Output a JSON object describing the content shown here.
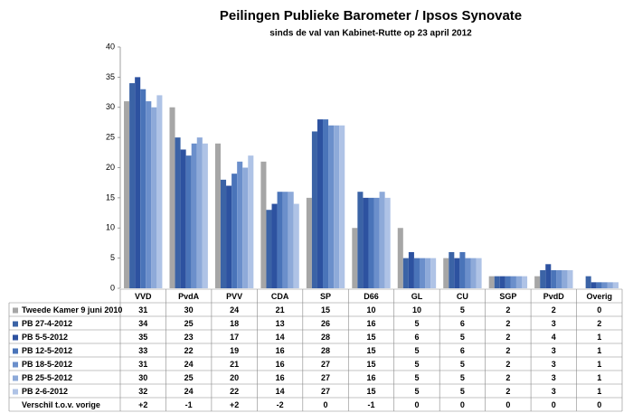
{
  "chart_data": {
    "type": "bar",
    "title": "Peilingen Publieke Barometer / Ipsos Synovate",
    "subtitle": "sinds de val van Kabinet-Rutte op 23 april 2012",
    "categories": [
      "VVD",
      "PvdA",
      "PVV",
      "CDA",
      "SP",
      "D66",
      "GL",
      "CU",
      "SGP",
      "PvdD",
      "Overig"
    ],
    "series": [
      {
        "name": "Tweede Kamer 9 juni 2010",
        "color": "#a6a6a6",
        "values": [
          31,
          30,
          24,
          21,
          15,
          10,
          10,
          5,
          2,
          2,
          0
        ]
      },
      {
        "name": "PB 27-4-2012",
        "color": "#3b63a6",
        "values": [
          34,
          25,
          18,
          13,
          26,
          16,
          5,
          6,
          2,
          3,
          2
        ]
      },
      {
        "name": "PB 5-5-2012",
        "color": "#2d52a0",
        "values": [
          35,
          23,
          17,
          14,
          28,
          15,
          6,
          5,
          2,
          4,
          1
        ]
      },
      {
        "name": "PB 12-5-2012",
        "color": "#4a74b9",
        "values": [
          33,
          22,
          19,
          16,
          28,
          15,
          5,
          6,
          2,
          3,
          1
        ]
      },
      {
        "name": "PB 18-5-2012",
        "color": "#6b8fcb",
        "values": [
          31,
          24,
          21,
          16,
          27,
          15,
          5,
          5,
          2,
          3,
          1
        ]
      },
      {
        "name": "PB 25-5-2012",
        "color": "#8eaad9",
        "values": [
          30,
          25,
          20,
          16,
          27,
          16,
          5,
          5,
          2,
          3,
          1
        ]
      },
      {
        "name": "PB 2-6-2012",
        "color": "#afc3e6",
        "values": [
          32,
          24,
          22,
          14,
          27,
          15,
          5,
          5,
          2,
          3,
          1
        ]
      }
    ],
    "difference": {
      "name": "Verschil t.o.v. vorige",
      "values": [
        "+2",
        "-1",
        "+2",
        "-2",
        "0",
        "-1",
        "0",
        "0",
        "0",
        "0",
        "0"
      ]
    },
    "ylim": [
      0,
      40
    ],
    "yticks": [
      0,
      5,
      10,
      15,
      20,
      25,
      30,
      35,
      40
    ],
    "grid": false
  }
}
